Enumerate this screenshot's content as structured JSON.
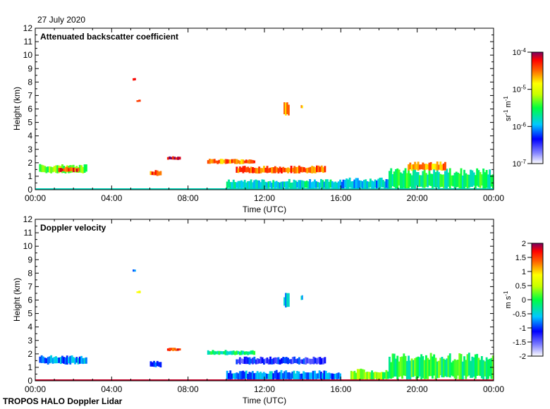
{
  "date_label": "27 July 2020",
  "footer_label": "TROPOS HALO Doppler Lidar",
  "chart_data": [
    {
      "type": "heatmap",
      "title": "Attenuated backscatter coefficient",
      "xlabel": "Time (UTC)",
      "ylabel": "Height (km)",
      "x_ticks": [
        "00:00",
        "04:00",
        "08:00",
        "12:00",
        "16:00",
        "20:00",
        "00:00"
      ],
      "x_range_hours": [
        0,
        24
      ],
      "ylim": [
        0,
        12
      ],
      "y_ticks": [
        "0",
        "1",
        "2",
        "3",
        "4",
        "5",
        "6",
        "7",
        "8",
        "9",
        "10",
        "11",
        "12"
      ],
      "colorbar": {
        "scale": "log",
        "unit_base": "sr",
        "unit_base_exp": "-1",
        "unit_second": "m",
        "unit_second_exp": "-1",
        "tick_base": "10",
        "ticks": [
          "-4",
          "-5",
          "-6",
          "-7"
        ],
        "range": [
          1e-07,
          0.0001
        ]
      },
      "features": [
        {
          "t0": 0.2,
          "t1": 2.7,
          "h0": 1.2,
          "h1": 1.9,
          "level": 0.55
        },
        {
          "t0": 1.2,
          "t1": 2.3,
          "h0": 1.3,
          "h1": 1.7,
          "level": 0.88
        },
        {
          "t0": 5.1,
          "t1": 5.25,
          "h0": 8.1,
          "h1": 8.3,
          "level": 0.9
        },
        {
          "t0": 5.3,
          "t1": 5.5,
          "h0": 6.5,
          "h1": 6.7,
          "level": 0.95
        },
        {
          "t0": 6.0,
          "t1": 6.6,
          "h0": 1.0,
          "h1": 1.5,
          "level": 0.85
        },
        {
          "t0": 6.9,
          "t1": 7.6,
          "h0": 2.2,
          "h1": 2.5,
          "level": 0.95
        },
        {
          "t0": 9.0,
          "t1": 11.5,
          "h0": 1.9,
          "h1": 2.3,
          "level": 0.82
        },
        {
          "t0": 10.5,
          "t1": 15.2,
          "h0": 1.2,
          "h1": 1.8,
          "level": 0.85
        },
        {
          "t0": 13.0,
          "t1": 13.3,
          "h0": 5.4,
          "h1": 6.6,
          "level": 0.78
        },
        {
          "t0": 13.9,
          "t1": 14.0,
          "h0": 6.0,
          "h1": 6.4,
          "level": 0.78
        },
        {
          "t0": 10.0,
          "t1": 16.0,
          "h0": 0.0,
          "h1": 0.8,
          "level": 0.4
        },
        {
          "t0": 16.0,
          "t1": 18.5,
          "h0": 0.0,
          "h1": 0.9,
          "level": 0.35
        },
        {
          "t0": 18.5,
          "t1": 24.0,
          "h0": 0.0,
          "h1": 1.6,
          "level": 0.48
        },
        {
          "t0": 19.5,
          "t1": 21.5,
          "h0": 1.4,
          "h1": 2.1,
          "level": 0.8
        }
      ]
    },
    {
      "type": "heatmap",
      "title": "Doppler velocity",
      "xlabel": "Time (UTC)",
      "ylabel": "Height (km)",
      "x_ticks": [
        "00:00",
        "04:00",
        "08:00",
        "12:00",
        "16:00",
        "20:00",
        "00:00"
      ],
      "x_range_hours": [
        0,
        24
      ],
      "ylim": [
        0,
        12
      ],
      "y_ticks": [
        "0",
        "1",
        "2",
        "3",
        "4",
        "5",
        "6",
        "7",
        "8",
        "9",
        "10",
        "11",
        "12"
      ],
      "colorbar": {
        "scale": "linear",
        "unit_base": "m",
        "unit_second": "s",
        "unit_second_exp": "-1",
        "ticks": [
          "2",
          "1.5",
          "1",
          "0.5",
          "0",
          "-0.5",
          "-1",
          "-1.5",
          "-2"
        ],
        "range": [
          -2,
          2
        ]
      },
      "features": [
        {
          "t0": 0.2,
          "t1": 2.7,
          "h0": 1.2,
          "h1": 1.9,
          "level": 0.3
        },
        {
          "t0": 5.1,
          "t1": 5.25,
          "h0": 8.1,
          "h1": 8.3,
          "level": 0.35
        },
        {
          "t0": 5.3,
          "t1": 5.5,
          "h0": 6.5,
          "h1": 6.7,
          "level": 0.65
        },
        {
          "t0": 6.0,
          "t1": 6.6,
          "h0": 1.0,
          "h1": 1.5,
          "level": 0.25
        },
        {
          "t0": 6.9,
          "t1": 7.6,
          "h0": 2.2,
          "h1": 2.5,
          "level": 0.88
        },
        {
          "t0": 9.0,
          "t1": 11.5,
          "h0": 1.9,
          "h1": 2.3,
          "level": 0.45
        },
        {
          "t0": 10.5,
          "t1": 15.2,
          "h0": 1.2,
          "h1": 1.8,
          "level": 0.2
        },
        {
          "t0": 13.0,
          "t1": 13.3,
          "h0": 5.4,
          "h1": 6.6,
          "level": 0.35
        },
        {
          "t0": 13.9,
          "t1": 14.0,
          "h0": 6.0,
          "h1": 6.4,
          "level": 0.35
        },
        {
          "t0": 10.0,
          "t1": 16.0,
          "h0": 0.0,
          "h1": 0.8,
          "level": 0.3
        },
        {
          "t0": 16.5,
          "t1": 18.5,
          "h0": 0.0,
          "h1": 0.9,
          "level": 0.55
        },
        {
          "t0": 18.5,
          "t1": 24.0,
          "h0": 0.0,
          "h1": 2.1,
          "level": 0.5
        }
      ]
    }
  ]
}
